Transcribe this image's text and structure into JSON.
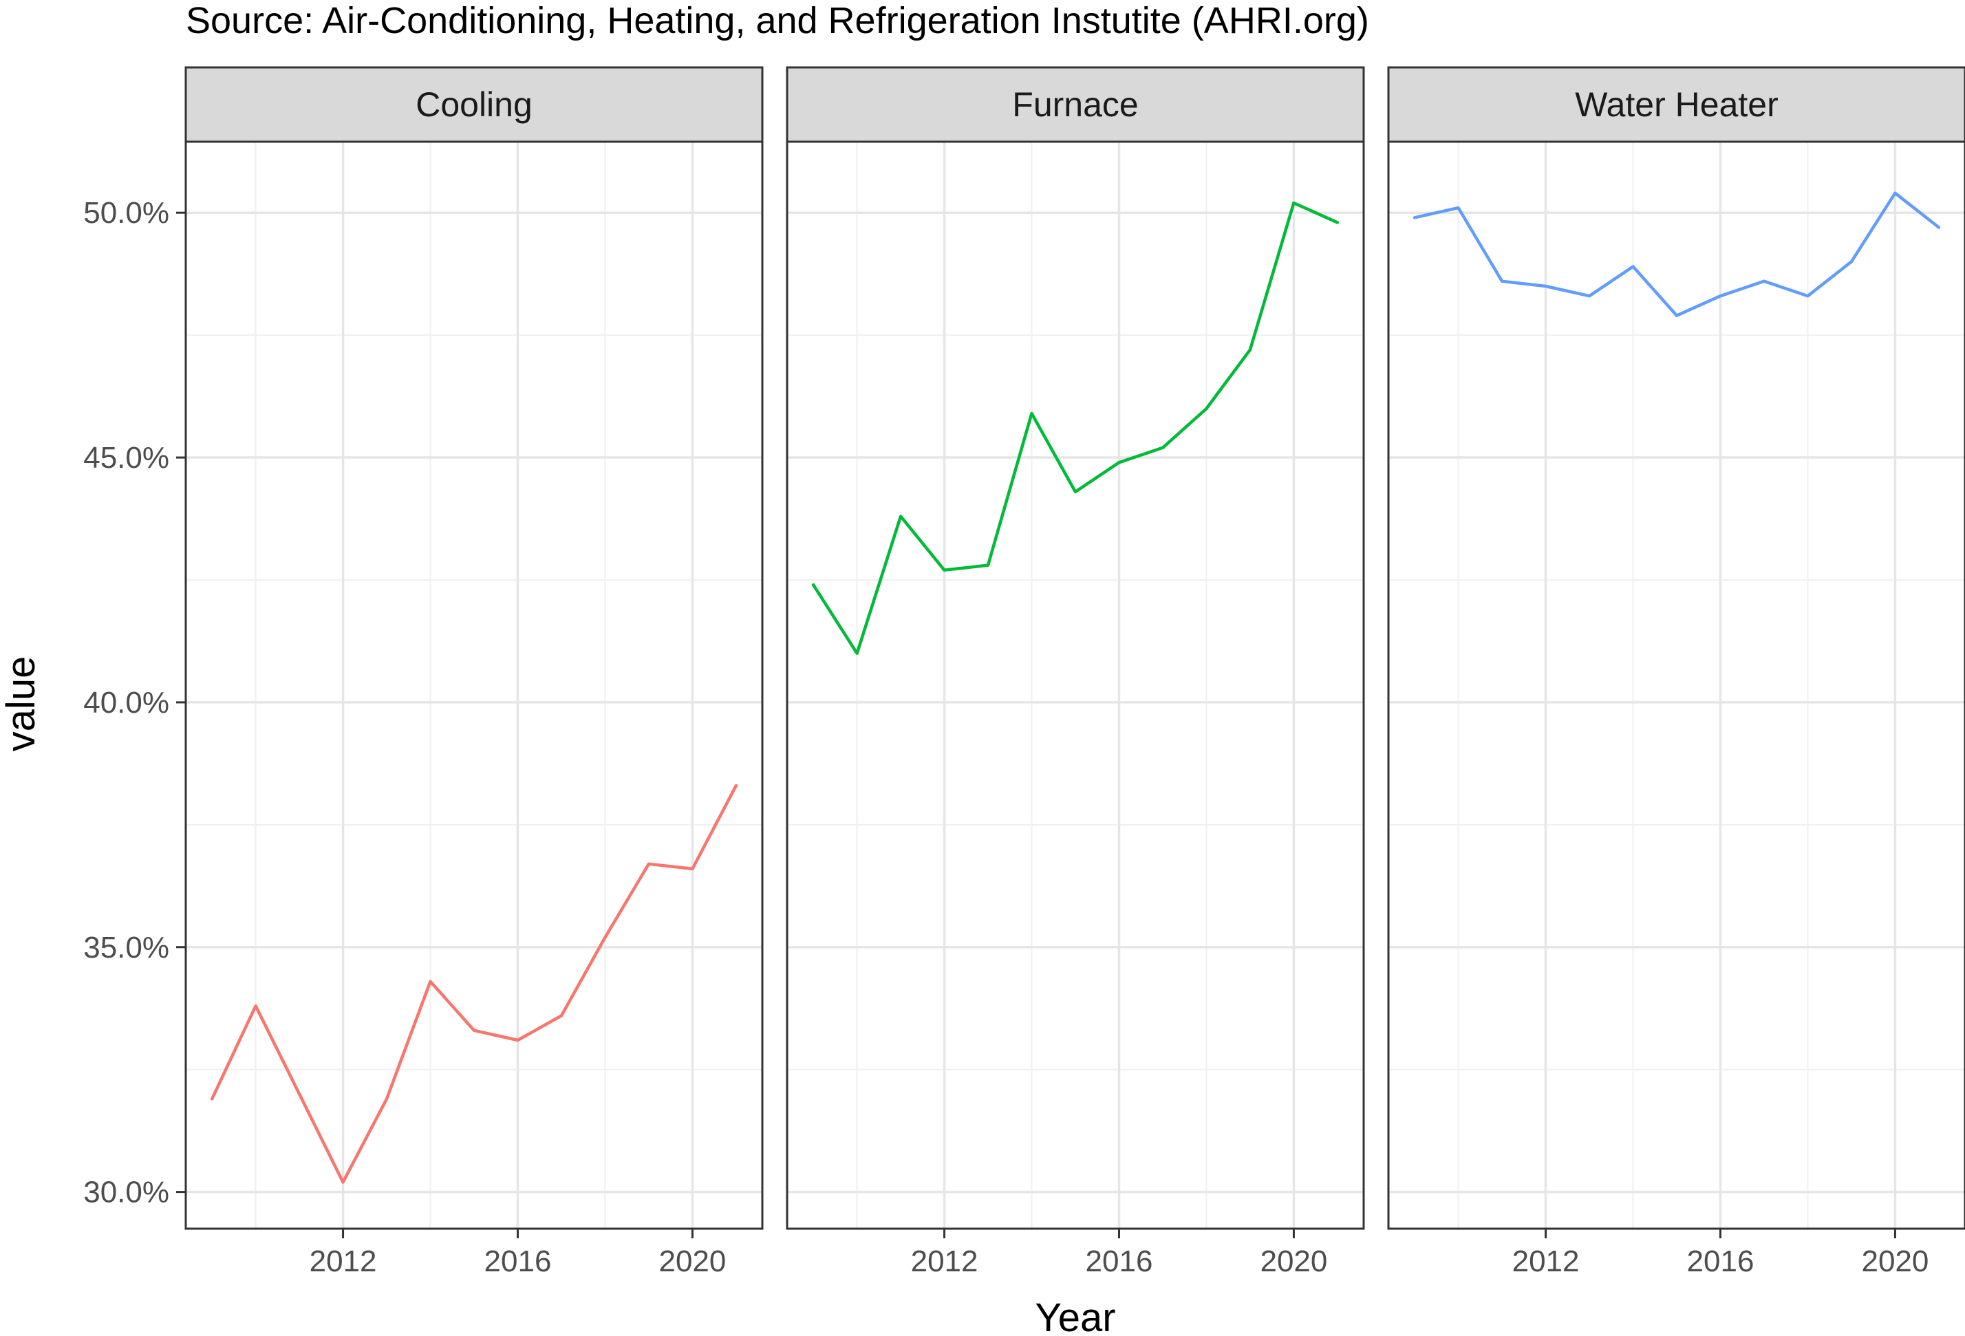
{
  "chart_data": {
    "type": "line",
    "caption": "Source: Air-Conditioning, Heating, and Refrigeration Instutite (AHRI.org)",
    "xlabel": "Year",
    "ylabel": "value",
    "x_ticks": [
      2012,
      2016,
      2020
    ],
    "y_ticks": [
      0.3,
      0.35,
      0.4,
      0.45,
      0.5
    ],
    "y_tick_labels": [
      "30.0%",
      "35.0%",
      "40.0%",
      "45.0%",
      "50.0%"
    ],
    "xlim": [
      2008.4,
      2021.6
    ],
    "ylim": [
      0.2925,
      0.5145
    ],
    "grid": true,
    "legend": "none",
    "x": [
      2009,
      2010,
      2011,
      2012,
      2013,
      2014,
      2015,
      2016,
      2017,
      2018,
      2019,
      2020,
      2021
    ],
    "panels": [
      {
        "name": "Cooling",
        "color": "#F8766D",
        "values": [
          0.319,
          0.338,
          0.32,
          0.302,
          0.319,
          0.343,
          0.333,
          0.331,
          0.336,
          0.352,
          0.367,
          0.366,
          0.383
        ]
      },
      {
        "name": "Furnace",
        "color": "#00BA38",
        "values": [
          0.424,
          0.41,
          0.438,
          0.427,
          0.428,
          0.459,
          0.443,
          0.449,
          0.452,
          0.46,
          0.472,
          0.502,
          0.498
        ]
      },
      {
        "name": "Water Heater",
        "color": "#619CFF",
        "values": [
          0.499,
          0.501,
          0.486,
          0.485,
          0.483,
          0.489,
          0.479,
          0.483,
          0.486,
          0.483,
          0.49,
          0.504,
          0.497
        ]
      }
    ]
  }
}
